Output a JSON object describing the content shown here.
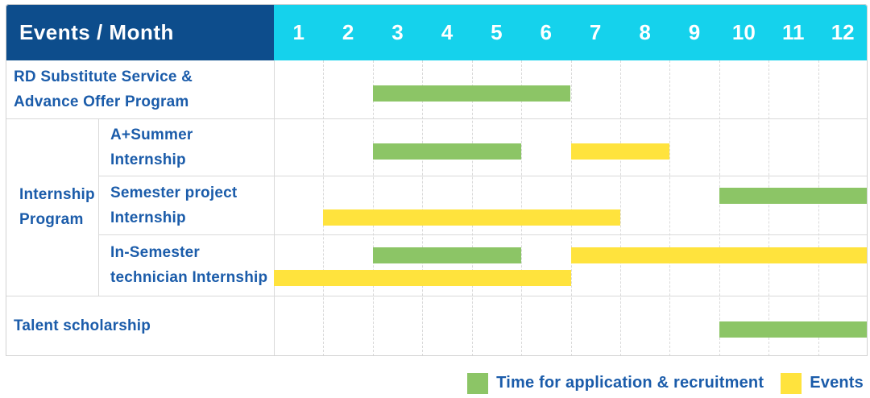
{
  "header": {
    "label": "Events / Month",
    "months": [
      "1",
      "2",
      "3",
      "4",
      "5",
      "6",
      "7",
      "8",
      "9",
      "10",
      "11",
      "12"
    ]
  },
  "colors": {
    "header_navy": "#0d4d8c",
    "header_cyan": "#15d2ec",
    "bar_green": "#8cc566",
    "bar_yellow": "#ffe33d",
    "label_blue": "#1b5caa",
    "grid_gray": "#d9d9d9"
  },
  "chart_data": {
    "type": "bar",
    "subtype": "gantt",
    "title": "Events / Month",
    "x_axis": {
      "unit": "month",
      "ticks": [
        1,
        2,
        3,
        4,
        5,
        6,
        7,
        8,
        9,
        10,
        11,
        12
      ],
      "range": [
        1,
        12
      ]
    },
    "grid": "dashed-vertical",
    "legend_position": "bottom-right",
    "series_colors": {
      "application": "#8cc566",
      "events": "#ffe33d"
    },
    "group": {
      "label_lines": [
        "Internship",
        "Program"
      ],
      "row_start": 1,
      "row_end": 3
    },
    "rows": [
      {
        "id": "rd-substitute-service",
        "label_lines": [
          "RD Substitute Service &",
          "Advance Offer Program"
        ],
        "indent": "main",
        "lanes": 1,
        "bars": [
          {
            "series": "application",
            "start_month": 3,
            "end_month": 6,
            "lane": 0
          }
        ]
      },
      {
        "id": "a-plus-summer-internship",
        "label_lines": [
          "A+Summer",
          "Internship"
        ],
        "indent": "sub",
        "lanes": 1,
        "bars": [
          {
            "series": "application",
            "start_month": 3,
            "end_month": 5,
            "lane": 0
          },
          {
            "series": "events",
            "start_month": 7,
            "end_month": 8,
            "lane": 0
          }
        ]
      },
      {
        "id": "semester-project-internship",
        "label_lines": [
          "Semester project",
          "Internship"
        ],
        "indent": "sub",
        "lanes": 2,
        "bars": [
          {
            "series": "application",
            "start_month": 10,
            "end_month": 12,
            "lane": 0
          },
          {
            "series": "events",
            "start_month": 2,
            "end_month": 7,
            "lane": 1
          }
        ]
      },
      {
        "id": "in-semester-technician-internship",
        "label_lines": [
          "In-Semester",
          "technician Internship"
        ],
        "indent": "sub",
        "lanes": 2,
        "bars": [
          {
            "series": "application",
            "start_month": 3,
            "end_month": 5,
            "lane": 0
          },
          {
            "series": "events",
            "start_month": 7,
            "end_month": 12,
            "lane": 0
          },
          {
            "series": "events",
            "start_month": 1,
            "end_month": 6,
            "lane": 1
          }
        ]
      },
      {
        "id": "talent-scholarship",
        "label_lines": [
          "Talent scholarship"
        ],
        "indent": "main",
        "lanes": 1,
        "bars": [
          {
            "series": "application",
            "start_month": 10,
            "end_month": 12,
            "lane": 0
          }
        ]
      }
    ],
    "legend": [
      {
        "series": "application",
        "label": "Time for application & recruitment",
        "color": "#8cc566"
      },
      {
        "series": "events",
        "label": "Events",
        "color": "#ffe33d"
      }
    ]
  },
  "legend": {
    "items": [
      {
        "label": "Time for application & recruitment"
      },
      {
        "label": "Events"
      }
    ]
  }
}
